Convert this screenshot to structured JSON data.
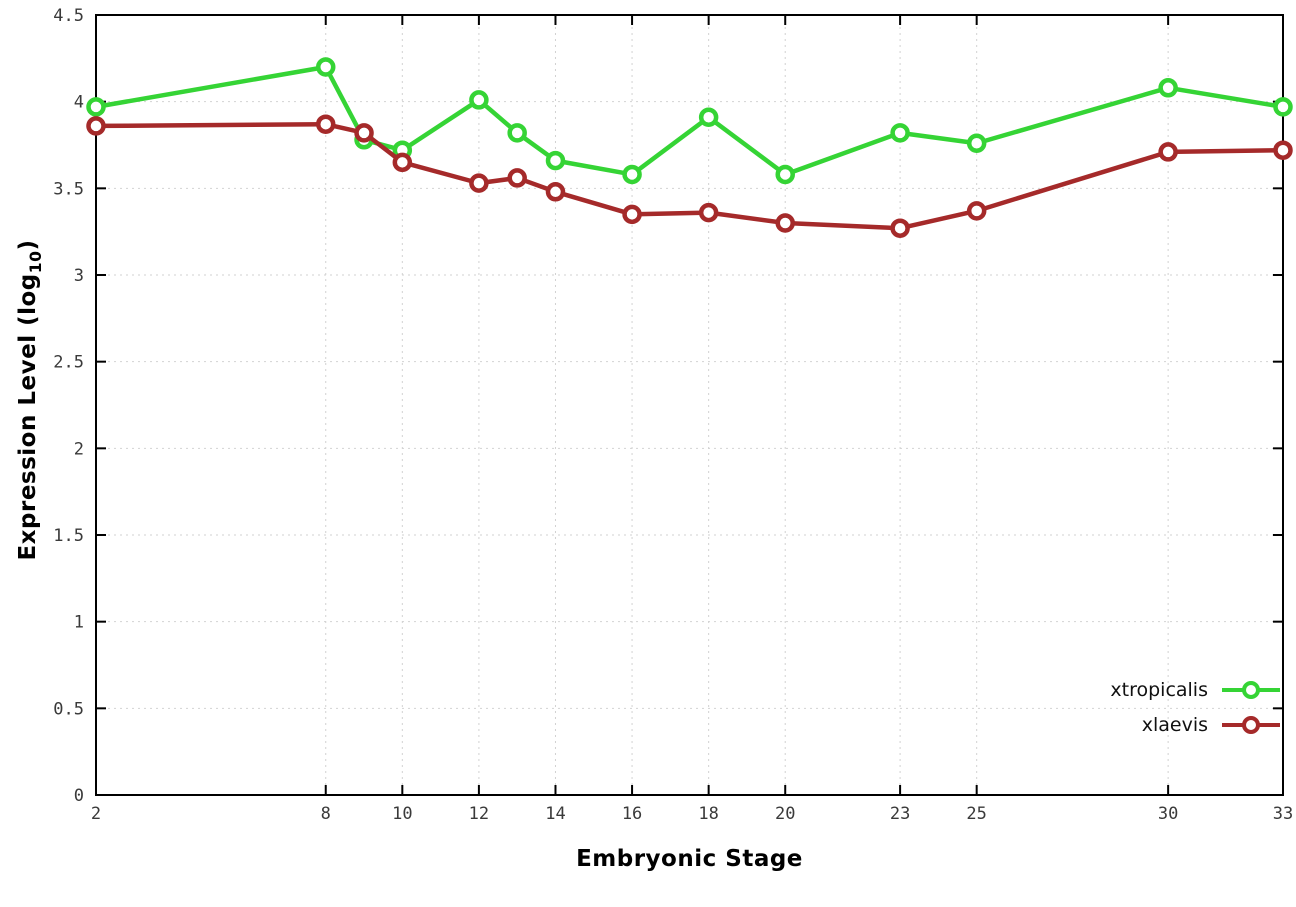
{
  "chart_data": {
    "type": "line",
    "title": "",
    "xlabel": "Embryonic Stage",
    "ylabel": "Expression Level (log10)",
    "ylabel_prefix": "Expression Level (log",
    "ylabel_sub": "10",
    "ylabel_suffix": ")",
    "xlim": [
      2,
      33
    ],
    "ylim": [
      0,
      4.5
    ],
    "x_ticks": [
      2,
      8,
      10,
      12,
      14,
      16,
      18,
      20,
      23,
      25,
      30,
      33
    ],
    "y_ticks": [
      0,
      0.5,
      1,
      1.5,
      2,
      2.5,
      3,
      3.5,
      4,
      4.5
    ],
    "grid": true,
    "legend_position": "bottom-right",
    "x": [
      2,
      8,
      9,
      10,
      12,
      13,
      14,
      16,
      18,
      20,
      23,
      25,
      30,
      33
    ],
    "series": [
      {
        "name": "xtropicalis",
        "color": "#35d435",
        "values": [
          3.97,
          4.2,
          3.78,
          3.72,
          4.01,
          3.82,
          3.66,
          3.58,
          3.91,
          3.58,
          3.82,
          3.76,
          4.08,
          3.97
        ]
      },
      {
        "name": "xlaevis",
        "color": "#a52a2a",
        "values": [
          3.86,
          3.87,
          3.82,
          3.65,
          3.53,
          3.56,
          3.48,
          3.35,
          3.36,
          3.3,
          3.27,
          3.37,
          3.71,
          3.72
        ]
      }
    ],
    "colors": {
      "grid": "#d2d2d2",
      "border": "#000000",
      "tick_label": "#3a3a3a"
    }
  }
}
